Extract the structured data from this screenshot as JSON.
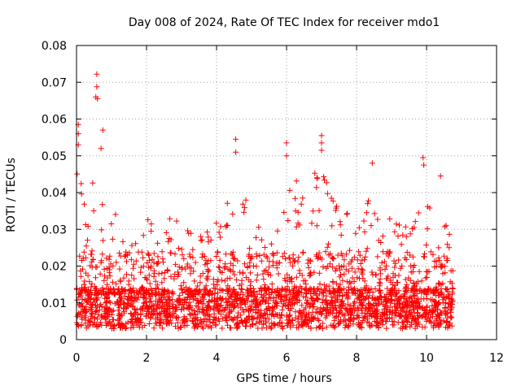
{
  "chart_data": {
    "type": "scatter",
    "title": "Day 008 of 2024, Rate Of TEC Index for receiver mdo1",
    "xlabel": "GPS time / hours",
    "ylabel": "ROTI / TECUs",
    "xlim": [
      0,
      12
    ],
    "ylim": [
      0,
      0.08
    ],
    "x_ticks": [
      0,
      2,
      4,
      6,
      8,
      10,
      12
    ],
    "x_tick_labels": [
      "0",
      "2",
      "4",
      "6",
      "8",
      "10",
      "12"
    ],
    "y_ticks": [
      0,
      0.01,
      0.02,
      0.03,
      0.04,
      0.05,
      0.06,
      0.07,
      0.08
    ],
    "y_tick_labels": [
      "0",
      "0.01",
      "0.02",
      "0.03",
      "0.04",
      "0.05",
      "0.06",
      "0.07",
      "0.08"
    ],
    "grid": true,
    "marker": "+",
    "color": "#ff0000",
    "x_data_range": [
      0,
      10.75
    ],
    "series": [
      {
        "name": "ROTI",
        "notable_points": [
          [
            0.05,
            0.0585
          ],
          [
            0.05,
            0.056
          ],
          [
            0.05,
            0.053
          ],
          [
            0.58,
            0.0722
          ],
          [
            0.58,
            0.0688
          ],
          [
            0.55,
            0.066
          ],
          [
            0.6,
            0.0655
          ],
          [
            0.75,
            0.057
          ],
          [
            0.7,
            0.052
          ],
          [
            4.55,
            0.0545
          ],
          [
            4.55,
            0.051
          ],
          [
            6.0,
            0.0535
          ],
          [
            6.0,
            0.05
          ],
          [
            7.0,
            0.0555
          ],
          [
            7.0,
            0.0535
          ],
          [
            7.0,
            0.0515
          ],
          [
            8.45,
            0.048
          ],
          [
            9.9,
            0.0495
          ],
          [
            9.92,
            0.0475
          ],
          [
            10.4,
            0.0445
          ]
        ],
        "envelope": [
          [
            0.0,
            0.045
          ],
          [
            0.5,
            0.05
          ],
          [
            1.0,
            0.038
          ],
          [
            1.5,
            0.025
          ],
          [
            2.0,
            0.035
          ],
          [
            2.5,
            0.035
          ],
          [
            3.0,
            0.032
          ],
          [
            3.5,
            0.028
          ],
          [
            4.0,
            0.032
          ],
          [
            4.5,
            0.045
          ],
          [
            5.0,
            0.035
          ],
          [
            5.5,
            0.025
          ],
          [
            6.0,
            0.045
          ],
          [
            6.5,
            0.042
          ],
          [
            7.0,
            0.048
          ],
          [
            7.5,
            0.035
          ],
          [
            8.0,
            0.035
          ],
          [
            8.5,
            0.042
          ],
          [
            9.0,
            0.035
          ],
          [
            9.5,
            0.03
          ],
          [
            10.0,
            0.04
          ],
          [
            10.5,
            0.035
          ],
          [
            10.75,
            0.025
          ]
        ],
        "base_band": [
          0.003,
          0.014
        ]
      }
    ]
  }
}
